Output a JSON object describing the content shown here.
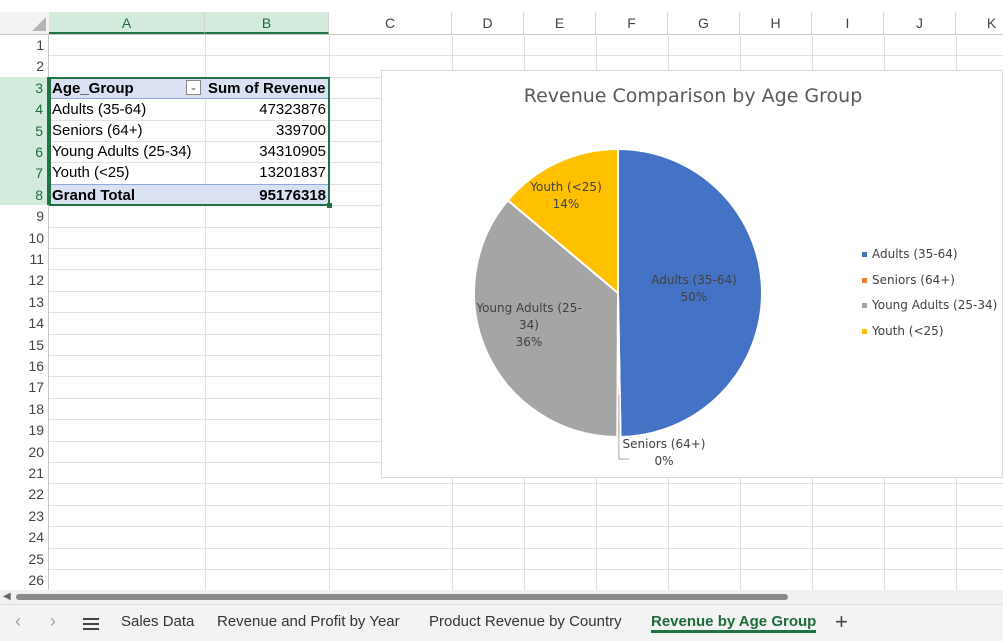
{
  "columns": [
    "A",
    "B",
    "C",
    "D",
    "E",
    "F",
    "G",
    "H",
    "I",
    "J",
    "K"
  ],
  "rows": [
    "1",
    "2",
    "3",
    "4",
    "5",
    "6",
    "7",
    "8",
    "9",
    "10",
    "11",
    "12",
    "13",
    "14",
    "15",
    "16",
    "17",
    "18",
    "19",
    "20",
    "21",
    "22",
    "23",
    "24",
    "25",
    "26"
  ],
  "pivot": {
    "header": {
      "label": "Age_Group",
      "value": "Sum of Revenue"
    },
    "rows": [
      {
        "label": "Adults (35-64)",
        "value": "47323876"
      },
      {
        "label": "Seniors (64+)",
        "value": "339700"
      },
      {
        "label": "Young Adults (25-34)",
        "value": "34310905"
      },
      {
        "label": "Youth (<25)",
        "value": "13201837"
      }
    ],
    "total": {
      "label": "Grand Total",
      "value": "95176318"
    }
  },
  "chart_data": {
    "type": "pie",
    "title": "Revenue Comparison by Age Group",
    "categories": [
      "Adults (35-64)",
      "Seniors (64+)",
      "Young Adults (25-34)",
      "Youth (<25)"
    ],
    "values": [
      47323876,
      339700,
      34310905,
      13201837
    ],
    "percent_labels": [
      "50%",
      "0%",
      "36%",
      "14%"
    ],
    "colors": [
      "#4472c4",
      "#ed7d31",
      "#a5a5a5",
      "#ffc000"
    ],
    "legend_position": "right",
    "data_labels": [
      {
        "lines": [
          "Adults (35-64)",
          "50%"
        ]
      },
      {
        "lines": [
          "Seniors (64+)",
          "0%"
        ]
      },
      {
        "lines": [
          "Young Adults (25-",
          "34)",
          "36%"
        ]
      },
      {
        "lines": [
          "Youth (<25)",
          "14%"
        ]
      }
    ]
  },
  "sheets": {
    "tabs": [
      "Sales Data",
      "Revenue and Profit by Year",
      "Product Revenue by Country",
      "Revenue by Age Group"
    ],
    "active": "Revenue by Age Group",
    "add_label": "+"
  },
  "icons": {
    "prev": "chevron-left-icon",
    "next": "chevron-right-icon",
    "menu": "hamburger-menu-icon",
    "filter": "dropdown-filter-icon"
  }
}
